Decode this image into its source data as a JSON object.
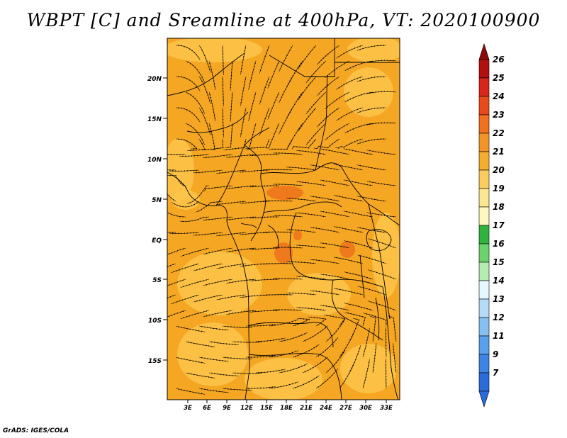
{
  "title": "WBPT [C] and Sreamline at 400hPa, VT: 2020100900",
  "credit": "GrADS: IGES/COLA",
  "map": {
    "variable": "Wet-bulb potential temperature",
    "level": "400hPa",
    "valid_time": "2020100900",
    "lat_ticks": [
      "20N",
      "15N",
      "10N",
      "5N",
      "EQ",
      "5S",
      "10S",
      "15S"
    ],
    "lon_ticks": [
      "3E",
      "6E",
      "9E",
      "12E",
      "15E",
      "18E",
      "21E",
      "24E",
      "27E",
      "30E",
      "33E"
    ],
    "colors": {
      "dominant_fill": "#f5a623",
      "light_fill": "#fcc44a",
      "warm_spot": "#ee7a1d"
    }
  },
  "colorbar": {
    "labels": [
      "26",
      "25",
      "24",
      "23",
      "22",
      "21",
      "20",
      "19",
      "18",
      "17",
      "16",
      "15",
      "14",
      "13",
      "12",
      "11",
      "9",
      "7"
    ],
    "colors": [
      "#b40f0f",
      "#d8261a",
      "#ea4a1a",
      "#f3701e",
      "#f59426",
      "#f5ad2d",
      "#fbcd5e",
      "#fbe692",
      "#fff7c0",
      "#2fb33c",
      "#6bd36b",
      "#b3edb2",
      "#e6f8ff",
      "#b5dbf8",
      "#86c0f3",
      "#5aa0ec",
      "#3d84e5",
      "#2a6cdb"
    ],
    "over_color": "#8b0a0a",
    "under_color": "#2a6cdb"
  }
}
